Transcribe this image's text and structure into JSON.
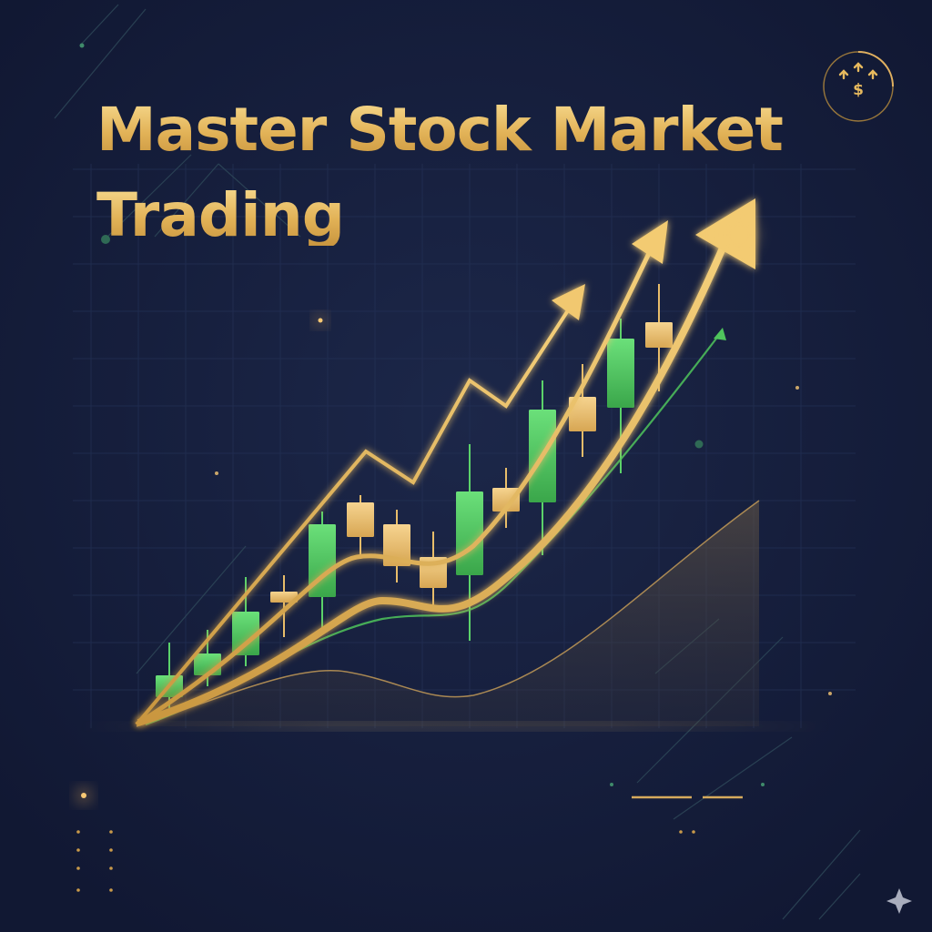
{
  "title": {
    "line1": "Master Stock Market",
    "line2": "Trading"
  },
  "icons": {
    "badge": "dollar-growth-icon",
    "corner": "sparkle-icon"
  },
  "colors": {
    "background": "#141c38",
    "gold": "#e6b95e",
    "green": "#4fc45c",
    "grid": "#233054"
  }
}
